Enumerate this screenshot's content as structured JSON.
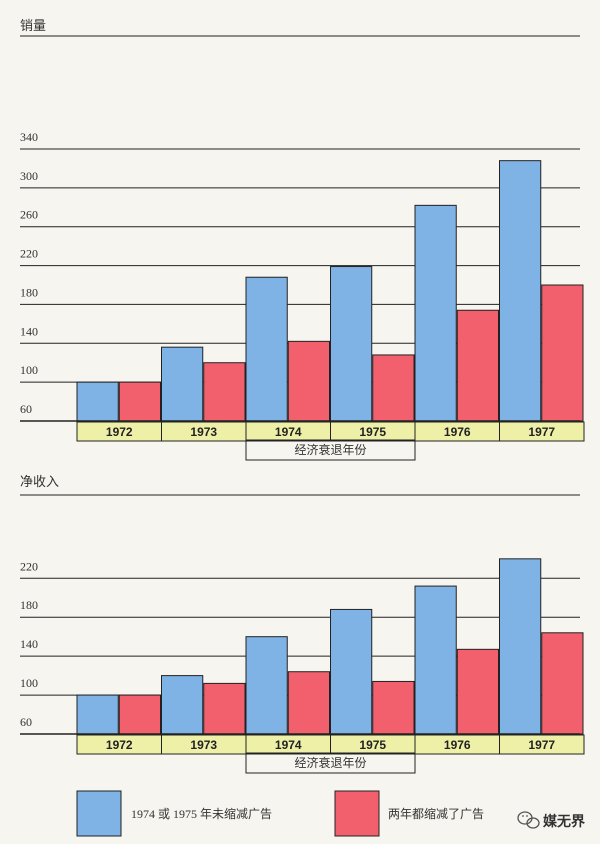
{
  "colors": {
    "blue": "#7fb2e5",
    "red": "#f2606e",
    "year_band": "#eef0a8",
    "line": "#222222",
    "background": "#f7f5ef"
  },
  "chart_data": [
    {
      "type": "bar",
      "ylabel": "销量",
      "ylim": [
        60,
        340
      ],
      "yticks": [
        60,
        100,
        140,
        180,
        220,
        260,
        300,
        340
      ],
      "categories": [
        "1972",
        "1973",
        "1974",
        "1975",
        "1976",
        "1977"
      ],
      "recession_label": "经济衰退年份",
      "recession_years": [
        "1974",
        "1975"
      ],
      "grid": true,
      "series": [
        {
          "name": "1974 或 1975 年未缩减广告",
          "color": "#7fb2e5",
          "values": [
            100,
            136,
            208,
            219,
            282,
            328
          ]
        },
        {
          "name": "两年都缩减了广告",
          "color": "#f2606e",
          "values": [
            100,
            120,
            142,
            128,
            174,
            200
          ]
        }
      ]
    },
    {
      "type": "bar",
      "ylabel": "净收入",
      "ylim": [
        60,
        220
      ],
      "yticks": [
        60,
        100,
        140,
        180,
        220
      ],
      "categories": [
        "1972",
        "1973",
        "1974",
        "1975",
        "1976",
        "1977"
      ],
      "recession_label": "经济衰退年份",
      "recession_years": [
        "1974",
        "1975"
      ],
      "grid": true,
      "series": [
        {
          "name": "1974 或 1975 年未缩减广告",
          "color": "#7fb2e5",
          "values": [
            100,
            120,
            160,
            188,
            212,
            240
          ]
        },
        {
          "name": "两年都缩减了广告",
          "color": "#f2606e",
          "values": [
            100,
            112,
            124,
            114,
            147,
            164
          ]
        }
      ]
    }
  ],
  "legend": {
    "items": [
      {
        "label": "1974 或 1975 年未缩减广告",
        "color": "#7fb2e5"
      },
      {
        "label": "两年都缩减了广告",
        "color": "#f2606e"
      }
    ]
  },
  "watermark": {
    "icon": "wechat-icon",
    "text": "媒无界"
  }
}
